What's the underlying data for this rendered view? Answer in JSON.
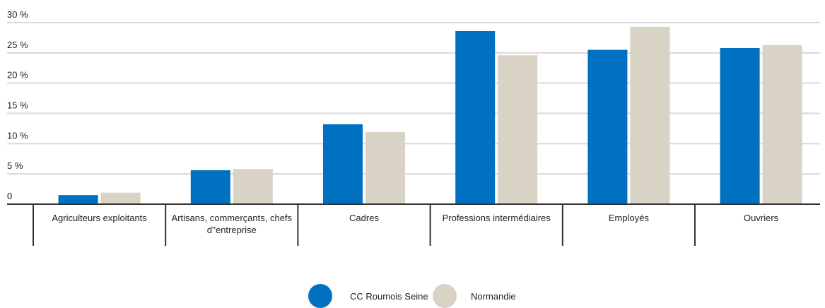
{
  "chart_data": {
    "type": "bar",
    "categories": [
      [
        "Agriculteurs exploitants"
      ],
      [
        "Artisans, commerçants, chefs",
        "d''entreprise"
      ],
      [
        "Cadres"
      ],
      [
        "Professions intermédiaires"
      ],
      [
        "Employés"
      ],
      [
        "Ouvriers"
      ]
    ],
    "series": [
      {
        "name": "CC Roumois Seine",
        "color": "#0070c0",
        "values": [
          1.5,
          5.6,
          13.2,
          28.6,
          25.5,
          25.8
        ]
      },
      {
        "name": "Normandie",
        "color": "#d9d3c5",
        "values": [
          1.9,
          5.8,
          11.9,
          24.6,
          29.3,
          26.3
        ]
      }
    ],
    "ylim": [
      0,
      30
    ],
    "yticks": [
      {
        "value": 0,
        "label": "0"
      },
      {
        "value": 5,
        "label": "5 %"
      },
      {
        "value": 10,
        "label": "10 %"
      },
      {
        "value": 15,
        "label": "15 %"
      },
      {
        "value": 20,
        "label": "20 %"
      },
      {
        "value": 25,
        "label": "25 %"
      },
      {
        "value": 30,
        "label": "30 %"
      }
    ],
    "grid": true,
    "gridColor": "#d9d9d9",
    "legend_position": "bottom-center"
  }
}
